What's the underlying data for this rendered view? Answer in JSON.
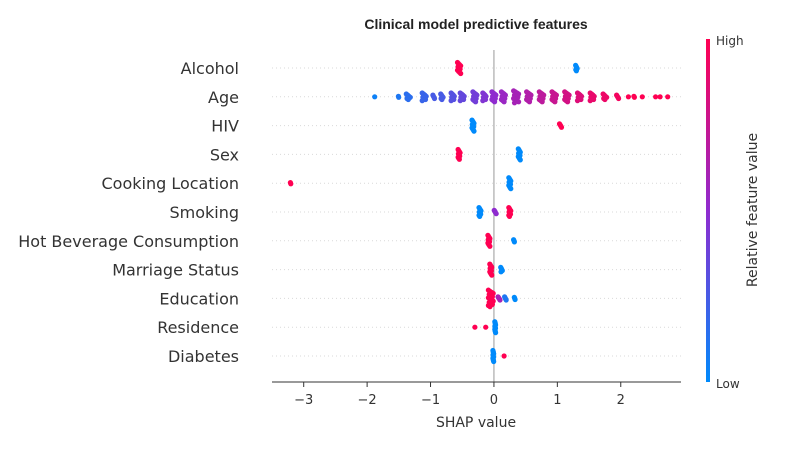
{
  "chart_data": {
    "type": "scatter",
    "title": "Clinical model predictive features",
    "xlabel": "SHAP value",
    "xlim": [
      -3.5,
      2.95
    ],
    "xticks": [
      -3,
      -2,
      -1,
      0,
      1,
      2
    ],
    "xtick_labels": [
      "−3",
      "−2",
      "−1",
      "0",
      "1",
      "2"
    ],
    "colorbar": {
      "label": "Relative feature value",
      "high_label": "High",
      "low_label": "Low",
      "low_color": "#008afb",
      "mid_color": "#8f2bcf",
      "high_color": "#ff0052"
    },
    "features": [
      {
        "name": "Alcohol",
        "clusters": [
          {
            "x": -0.55,
            "v": 1.0,
            "n": 11,
            "w": 0.16
          },
          {
            "x": 1.3,
            "v": 0.0,
            "n": 6,
            "w": 0.08
          }
        ]
      },
      {
        "name": "Age",
        "clusters": [
          {
            "x": -1.88,
            "v": 0.05,
            "n": 1,
            "w": 0
          },
          {
            "x": -1.5,
            "v": 0.1,
            "n": 2,
            "w": 0.04
          },
          {
            "x": -1.35,
            "v": 0.15,
            "n": 6,
            "w": 0.2
          },
          {
            "x": -1.1,
            "v": 0.2,
            "n": 8,
            "w": 0.2
          },
          {
            "x": -0.95,
            "v": 0.25,
            "n": 4,
            "w": 0.08
          },
          {
            "x": -0.82,
            "v": 0.25,
            "n": 6,
            "w": 0.12
          },
          {
            "x": -0.65,
            "v": 0.3,
            "n": 8,
            "w": 0.16
          },
          {
            "x": -0.5,
            "v": 0.35,
            "n": 8,
            "w": 0.2
          },
          {
            "x": -0.3,
            "v": 0.4,
            "n": 10,
            "w": 0.2
          },
          {
            "x": -0.15,
            "v": 0.45,
            "n": 8,
            "w": 0.16
          },
          {
            "x": 0.0,
            "v": 0.5,
            "n": 10,
            "w": 0.2
          },
          {
            "x": 0.15,
            "v": 0.55,
            "n": 10,
            "w": 0.2
          },
          {
            "x": 0.35,
            "v": 0.6,
            "n": 12,
            "w": 0.25
          },
          {
            "x": 0.55,
            "v": 0.65,
            "n": 10,
            "w": 0.22
          },
          {
            "x": 0.75,
            "v": 0.7,
            "n": 10,
            "w": 0.22
          },
          {
            "x": 0.95,
            "v": 0.75,
            "n": 10,
            "w": 0.22
          },
          {
            "x": 1.15,
            "v": 0.8,
            "n": 10,
            "w": 0.22
          },
          {
            "x": 1.35,
            "v": 0.85,
            "n": 8,
            "w": 0.2
          },
          {
            "x": 1.55,
            "v": 0.9,
            "n": 8,
            "w": 0.2
          },
          {
            "x": 1.75,
            "v": 0.92,
            "n": 6,
            "w": 0.18
          },
          {
            "x": 1.95,
            "v": 0.95,
            "n": 4,
            "w": 0.1
          },
          {
            "x": 2.12,
            "v": 1.0,
            "n": 1,
            "w": 0
          },
          {
            "x": 2.22,
            "v": 1.0,
            "n": 2,
            "w": 0.08
          },
          {
            "x": 2.34,
            "v": 1.0,
            "n": 1,
            "w": 0
          },
          {
            "x": 2.55,
            "v": 1.0,
            "n": 1,
            "w": 0
          },
          {
            "x": 2.62,
            "v": 1.0,
            "n": 1,
            "w": 0
          },
          {
            "x": 2.74,
            "v": 1.0,
            "n": 1,
            "w": 0
          }
        ]
      },
      {
        "name": "HIV",
        "clusters": [
          {
            "x": -0.33,
            "v": 0.0,
            "n": 11,
            "w": 0.1
          },
          {
            "x": 1.05,
            "v": 1.0,
            "n": 4,
            "w": 0.1
          }
        ]
      },
      {
        "name": "Sex",
        "clusters": [
          {
            "x": -0.55,
            "v": 1.0,
            "n": 10,
            "w": 0.1
          },
          {
            "x": 0.4,
            "v": 0.0,
            "n": 11,
            "w": 0.1
          }
        ]
      },
      {
        "name": "Cooking Location",
        "clusters": [
          {
            "x": -3.2,
            "v": 1.0,
            "n": 2,
            "w": 0.06
          },
          {
            "x": 0.25,
            "v": 0.0,
            "n": 11,
            "w": 0.1
          }
        ]
      },
      {
        "name": "Smoking",
        "clusters": [
          {
            "x": -0.22,
            "v": 0.0,
            "n": 9,
            "w": 0.1
          },
          {
            "x": 0.02,
            "v": 0.5,
            "n": 4,
            "w": 0.1
          },
          {
            "x": 0.25,
            "v": 1.0,
            "n": 9,
            "w": 0.1
          }
        ]
      },
      {
        "name": "Hot Beverage Consumption",
        "clusters": [
          {
            "x": -0.08,
            "v": 1.0,
            "n": 11,
            "w": 0.1
          },
          {
            "x": 0.32,
            "v": 0.0,
            "n": 3,
            "w": 0.06
          }
        ]
      },
      {
        "name": "Marriage Status",
        "clusters": [
          {
            "x": -0.05,
            "v": 1.0,
            "n": 11,
            "w": 0.1
          },
          {
            "x": 0.12,
            "v": 0.0,
            "n": 5,
            "w": 0.08
          }
        ]
      },
      {
        "name": "Education",
        "clusters": [
          {
            "x": -0.05,
            "v": 1.0,
            "n": 16,
            "w": 0.24
          },
          {
            "x": 0.08,
            "v": 0.6,
            "n": 4,
            "w": 0.1
          },
          {
            "x": 0.18,
            "v": 0.1,
            "n": 4,
            "w": 0.08
          },
          {
            "x": 0.33,
            "v": 0.0,
            "n": 3,
            "w": 0.06
          }
        ]
      },
      {
        "name": "Residence",
        "clusters": [
          {
            "x": -0.3,
            "v": 1.0,
            "n": 1,
            "w": 0
          },
          {
            "x": -0.13,
            "v": 1.0,
            "n": 1,
            "w": 0
          },
          {
            "x": 0.02,
            "v": 0.0,
            "n": 11,
            "w": 0.04
          }
        ]
      },
      {
        "name": "Diabetes",
        "clusters": [
          {
            "x": -0.01,
            "v": 0.0,
            "n": 11,
            "w": 0.04
          },
          {
            "x": 0.16,
            "v": 1.0,
            "n": 1,
            "w": 0
          }
        ]
      }
    ]
  }
}
